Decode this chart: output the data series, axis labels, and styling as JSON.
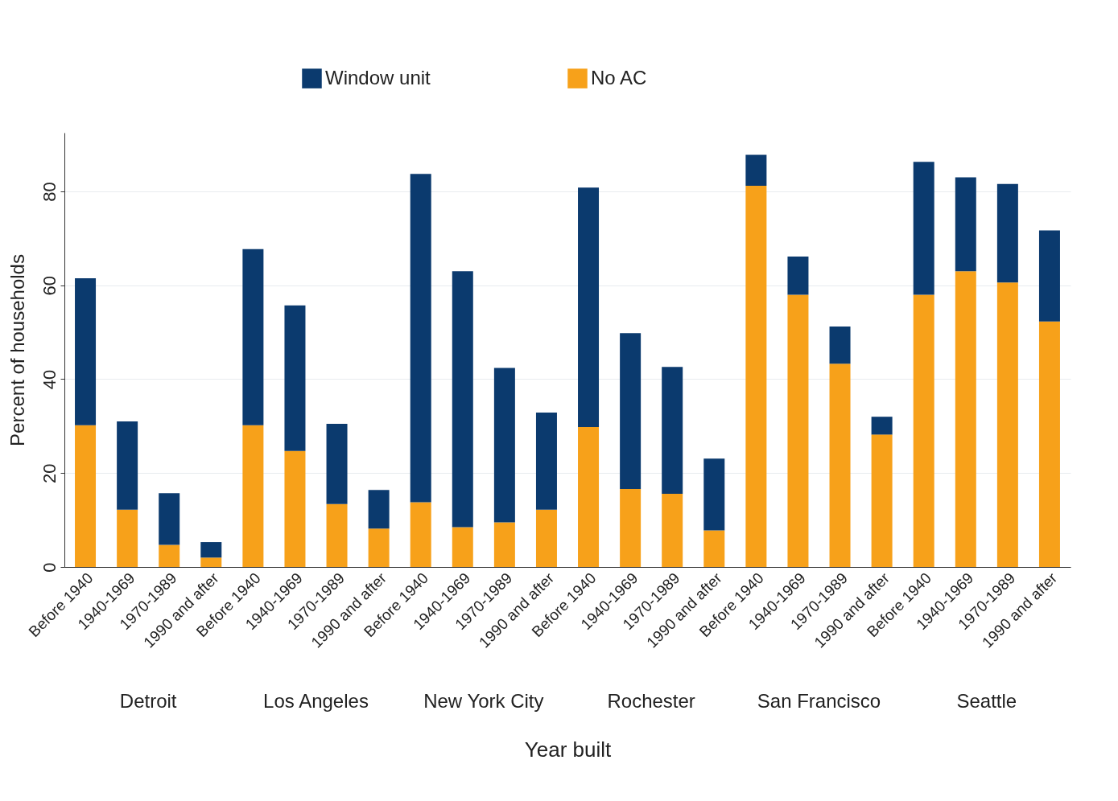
{
  "chart_data": {
    "type": "bar",
    "stacked": true,
    "legend": "top",
    "grid": "y",
    "ylabel": "Percent of households",
    "xlabel": "Year built",
    "annotations": [
      "Detroit",
      "Los Angeles",
      "New York City",
      "Rochester",
      "San Francisco",
      "Seattle"
    ],
    "ylim": [
      0,
      92.5
    ],
    "yticks": [
      0,
      20,
      40,
      60,
      80
    ],
    "categories": [
      "Before 1940",
      "1940-1969",
      "1970-1989",
      "1990 and after",
      "Before 1940",
      "1940-1969",
      "1970-1989",
      "1990 and after",
      "Before 1940",
      "1940-1969",
      "1970-1989",
      "1990 and after",
      "Before 1940",
      "1940-1969",
      "1970-1989",
      "1990 and after",
      "Before 1940",
      "1940-1969",
      "1970-1989",
      "1990 and after",
      "Before 1940",
      "1940-1969",
      "1970-1989",
      "1990 and after"
    ],
    "series": [
      {
        "name": "No AC",
        "color": "#f7a11a",
        "values": [
          30.2,
          12.2,
          4.7,
          2.0,
          30.2,
          24.7,
          13.4,
          8.2,
          13.8,
          8.5,
          9.5,
          12.2,
          29.8,
          16.6,
          15.6,
          7.8,
          81.2,
          58.0,
          43.3,
          28.2,
          58.0,
          63.0,
          60.6,
          52.3
        ]
      },
      {
        "name": "Window unit",
        "color": "#0b3a6e",
        "values": [
          31.3,
          18.8,
          11.0,
          3.3,
          37.5,
          31.0,
          17.1,
          8.2,
          69.9,
          54.5,
          32.9,
          20.7,
          51.0,
          33.2,
          27.0,
          15.3,
          6.6,
          8.1,
          7.9,
          3.8,
          28.3,
          20.0,
          21.0,
          19.4
        ]
      }
    ]
  }
}
